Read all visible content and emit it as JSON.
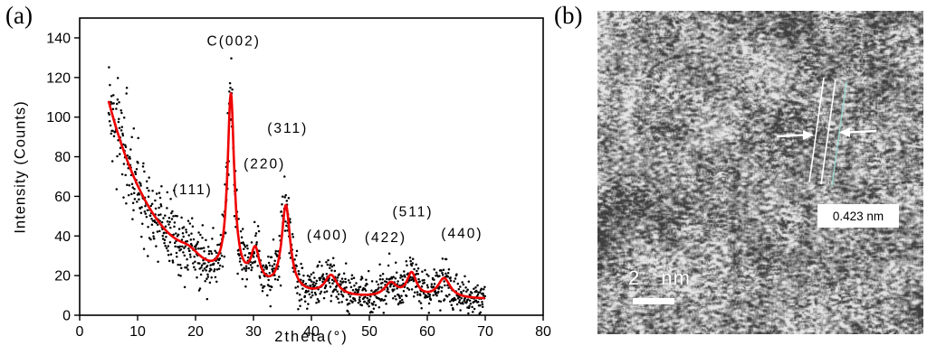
{
  "panels": {
    "a_label": "(a)",
    "b_label": "(b)"
  },
  "chart_data": {
    "type": "scatter",
    "title": "",
    "xlabel": "2theta(°)",
    "ylabel": "Intensity (Counts)",
    "xlim": [
      0,
      80
    ],
    "ylim": [
      0,
      150
    ],
    "xticks": [
      0,
      10,
      20,
      30,
      40,
      50,
      60,
      70,
      80
    ],
    "yticks": [
      0,
      20,
      40,
      60,
      80,
      100,
      120,
      140
    ],
    "x_range_data": [
      5,
      70
    ],
    "series": [
      {
        "name": "measured XRD counts",
        "style": "black-dots"
      },
      {
        "name": "fitted profile",
        "style": "red-line"
      }
    ],
    "background": {
      "offset": 8,
      "amplitude": 175,
      "tau": 8.9
    },
    "peaks": [
      {
        "label": "(111)",
        "center": 18.9,
        "height": 5,
        "width": 2.5
      },
      {
        "label": "C(002)",
        "center": 26.1,
        "height": 93,
        "width": 0.7
      },
      {
        "label": "(220)",
        "center": 30.3,
        "height": 17,
        "width": 0.9
      },
      {
        "label": "(311)",
        "center": 35.6,
        "height": 43,
        "width": 0.9
      },
      {
        "label": "(400)",
        "center": 43.4,
        "height": 10,
        "width": 1.3
      },
      {
        "label": "(422)",
        "center": 53.7,
        "height": 7,
        "width": 1.3
      },
      {
        "label": "(511)",
        "center": 57.3,
        "height": 12,
        "width": 1.0
      },
      {
        "label": "(440)",
        "center": 62.9,
        "height": 10,
        "width": 1.3
      }
    ],
    "annotations": [
      {
        "text": "(111)",
        "x": 19.5,
        "y": 61
      },
      {
        "text": "C(002)",
        "x": 26.6,
        "y": 136
      },
      {
        "text": "(220)",
        "x": 31.9,
        "y": 74
      },
      {
        "text": "(311)",
        "x": 35.9,
        "y": 92
      },
      {
        "text": "(400)",
        "x": 42.8,
        "y": 38
      },
      {
        "text": "(422)",
        "x": 52.8,
        "y": 37
      },
      {
        "text": "(511)",
        "x": 57.5,
        "y": 50
      },
      {
        "text": "(440)",
        "x": 66.0,
        "y": 39
      }
    ],
    "colors": {
      "points": "#000000",
      "fit": "#ee0000"
    },
    "grid": false,
    "legend": "none"
  },
  "tem": {
    "spacing_label": "0.423 nm",
    "scalebar_label": "2 nm"
  }
}
